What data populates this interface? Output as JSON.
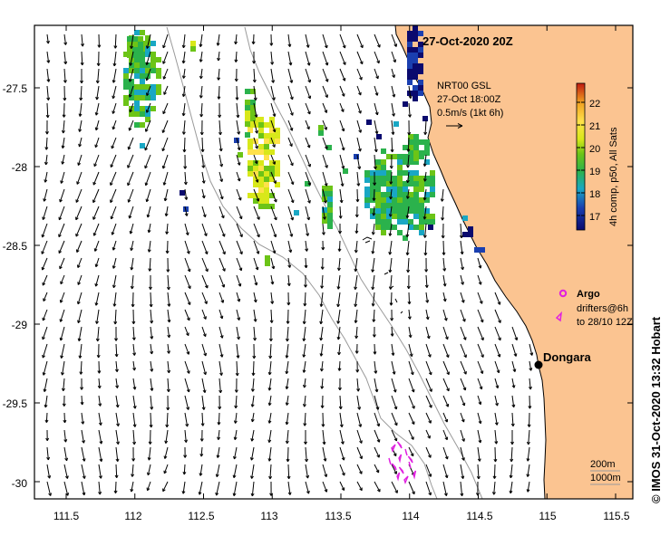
{
  "map": {
    "title": "27-Oct-2020 20Z",
    "lon_ticks": [
      "111.5",
      "112",
      "112.5",
      "113",
      "113.5",
      "114",
      "114.5",
      "115",
      "115.5"
    ],
    "lon_values": [
      111.5,
      112,
      112.5,
      113,
      113.5,
      114,
      114.5,
      115,
      115.5
    ],
    "lat_ticks": [
      "-27.5",
      "-28",
      "-28.5",
      "-29",
      "-29.5",
      "-30"
    ],
    "lat_values": [
      -27.5,
      -28,
      -28.5,
      -29,
      -29.5,
      -30
    ],
    "lon_range": [
      111.3,
      115.6
    ],
    "lat_range": [
      -30.1,
      -27.1
    ],
    "current_label": {
      "line1": "NRT00 GSL",
      "line2": "27-Oct 18:00Z",
      "line3": "0.5m/s (1kt 6h)"
    },
    "colorbar": {
      "label": "4h comp, p50, All Sats",
      "ticks": [
        "17",
        "18",
        "19",
        "20",
        "21",
        "22"
      ],
      "range": [
        16.5,
        22.8
      ],
      "colors": [
        "#0a0a6e",
        "#1a3fb0",
        "#19a7c4",
        "#2bb24c",
        "#6cc417",
        "#d8e81a",
        "#ffe14a",
        "#f0a020",
        "#c01a10"
      ]
    },
    "legend": {
      "argo_label": "Argo",
      "drifter_line1": "drifters@6h",
      "drifter_line2": "to 28/10 12Z",
      "marker_color": "#e020e0"
    },
    "place": {
      "name": "Dongara",
      "lon": 114.92,
      "lat": -29.25
    },
    "depth_labels": {
      "shallow": "200m",
      "deep": "1000m"
    },
    "credit": "© IMOS 31-Oct-2020 13:32 Hobart",
    "land_color": "#fbc491"
  }
}
